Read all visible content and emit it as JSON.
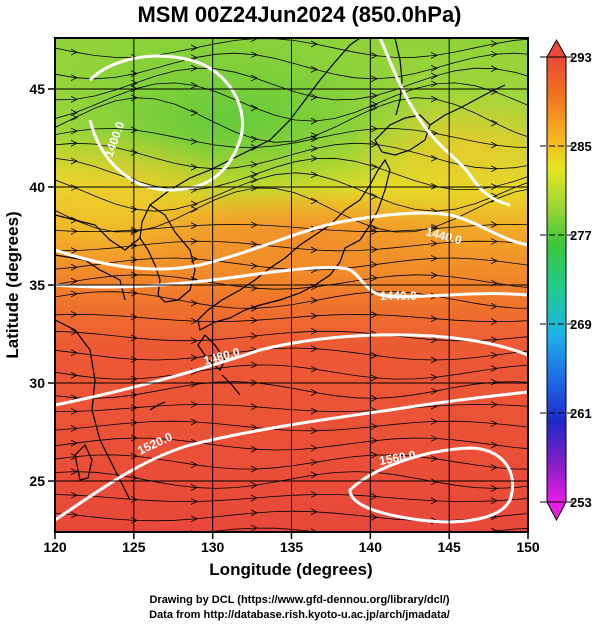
{
  "title": "MSM 00Z24Jun2024 (850.0hPa)",
  "x_axis": {
    "label": "Longitude (degrees)",
    "ticks": [
      "120",
      "125",
      "130",
      "135",
      "140",
      "145",
      "150"
    ]
  },
  "y_axis": {
    "label": "Latitude  (degrees)",
    "ticks": [
      "25",
      "30",
      "35",
      "40",
      "45"
    ]
  },
  "colorbar": {
    "ticks": [
      "293",
      "285",
      "277",
      "269",
      "261",
      "253"
    ]
  },
  "contours": [
    {
      "label": "1440.0"
    },
    {
      "label": "1440.0"
    },
    {
      "label": "1480.0"
    },
    {
      "label": "1520.0"
    },
    {
      "label": "1560.0"
    },
    {
      "label": "1400.0"
    }
  ],
  "footer": {
    "line1": "Drawing by DCL (https://www.gfd-dennou.org/library/dcl/)",
    "line2": "Data from http://database.rish.kyoto-u.ac.jp/arch/jmadata/"
  },
  "chart_data": {
    "type": "heatmap",
    "title": "MSM 00Z24Jun2024 (850.0hPa)",
    "xlabel": "Longitude (degrees)",
    "ylabel": "Latitude  (degrees)",
    "xlim": [
      120,
      150
    ],
    "ylim": [
      22.4,
      47.6
    ],
    "colorbar_range": [
      253,
      293
    ],
    "contour_levels": [
      1400,
      1440,
      1480,
      1520,
      1560
    ]
  }
}
